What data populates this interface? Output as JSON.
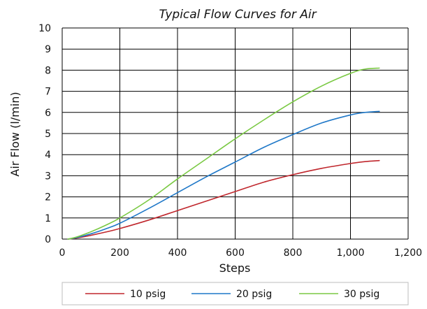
{
  "chart_data": {
    "type": "line",
    "title": "Typical Flow Curves for Air",
    "xlabel": "Steps",
    "ylabel": "Air Flow (l/min)",
    "xlim": [
      0,
      1200
    ],
    "ylim": [
      0,
      10
    ],
    "x_ticks": [
      0,
      200,
      400,
      600,
      800,
      1000,
      1200
    ],
    "x_tick_labels": [
      "0",
      "200",
      "400",
      "600",
      "800",
      "1,000",
      "1,200"
    ],
    "y_ticks": [
      0,
      1,
      2,
      3,
      4,
      5,
      6,
      7,
      8,
      9,
      10
    ],
    "y_tick_labels": [
      "0",
      "1",
      "2",
      "3",
      "4",
      "5",
      "6",
      "7",
      "8",
      "9",
      "10"
    ],
    "grid": true,
    "legend_position": "bottom",
    "series": [
      {
        "name": "10 psig",
        "color": "#c0272d",
        "x": [
          20,
          50,
          100,
          150,
          200,
          300,
          400,
          500,
          600,
          700,
          800,
          900,
          1000,
          1050,
          1100
        ],
        "y": [
          0.0,
          0.05,
          0.18,
          0.33,
          0.5,
          0.9,
          1.35,
          1.8,
          2.25,
          2.7,
          3.05,
          3.35,
          3.58,
          3.67,
          3.72
        ]
      },
      {
        "name": "20 psig",
        "color": "#1f78c8",
        "x": [
          20,
          50,
          100,
          150,
          200,
          300,
          400,
          500,
          600,
          700,
          800,
          900,
          1000,
          1050,
          1100
        ],
        "y": [
          0.0,
          0.07,
          0.25,
          0.48,
          0.75,
          1.45,
          2.2,
          2.95,
          3.65,
          4.35,
          4.95,
          5.5,
          5.88,
          6.0,
          6.05
        ]
      },
      {
        "name": "30 psig",
        "color": "#7ac943",
        "x": [
          20,
          50,
          100,
          150,
          200,
          300,
          400,
          500,
          600,
          700,
          800,
          900,
          1000,
          1050,
          1100
        ],
        "y": [
          0.0,
          0.1,
          0.35,
          0.65,
          1.0,
          1.85,
          2.85,
          3.8,
          4.75,
          5.65,
          6.5,
          7.25,
          7.85,
          8.05,
          8.1
        ]
      }
    ]
  }
}
